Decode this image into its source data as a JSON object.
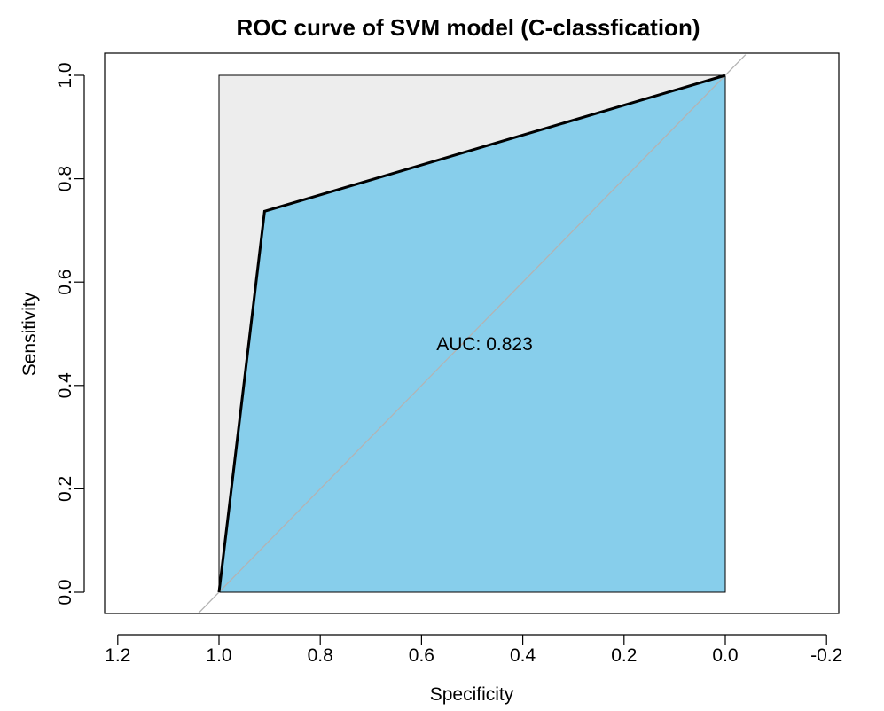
{
  "chart_data": {
    "type": "line",
    "title": "ROC curve of SVM model (C-classfication)",
    "xlabel": "Specificity",
    "ylabel": "Sensitivity",
    "x_reversed": true,
    "xlim": [
      1.2,
      -0.2
    ],
    "ylim": [
      0.0,
      1.0
    ],
    "x_ticks": [
      1.2,
      1.0,
      0.8,
      0.6,
      0.4,
      0.2,
      0.0,
      -0.2
    ],
    "x_tick_labels": [
      "1.2",
      "1.0",
      "0.8",
      "0.6",
      "0.4",
      "0.2",
      "0.0",
      "-0.2"
    ],
    "y_ticks": [
      0.0,
      0.2,
      0.4,
      0.6,
      0.8,
      1.0
    ],
    "y_tick_labels": [
      "0.0",
      "0.2",
      "0.4",
      "0.6",
      "0.8",
      "1.0"
    ],
    "grid": false,
    "series": [
      {
        "x": [
          1.0,
          0.91,
          0.0
        ],
        "y": [
          0.0,
          0.737,
          1.0
        ]
      }
    ],
    "diagonal_reference": true,
    "annotation": "AUC: 0.823",
    "annotation_position": {
      "x": 0.5,
      "y": 0.48
    },
    "colors": {
      "auc_fill": "#87ceeb",
      "max_auc_fill": "#ededed",
      "curve": "#000000",
      "diagonal": "#b3b3b3"
    }
  }
}
